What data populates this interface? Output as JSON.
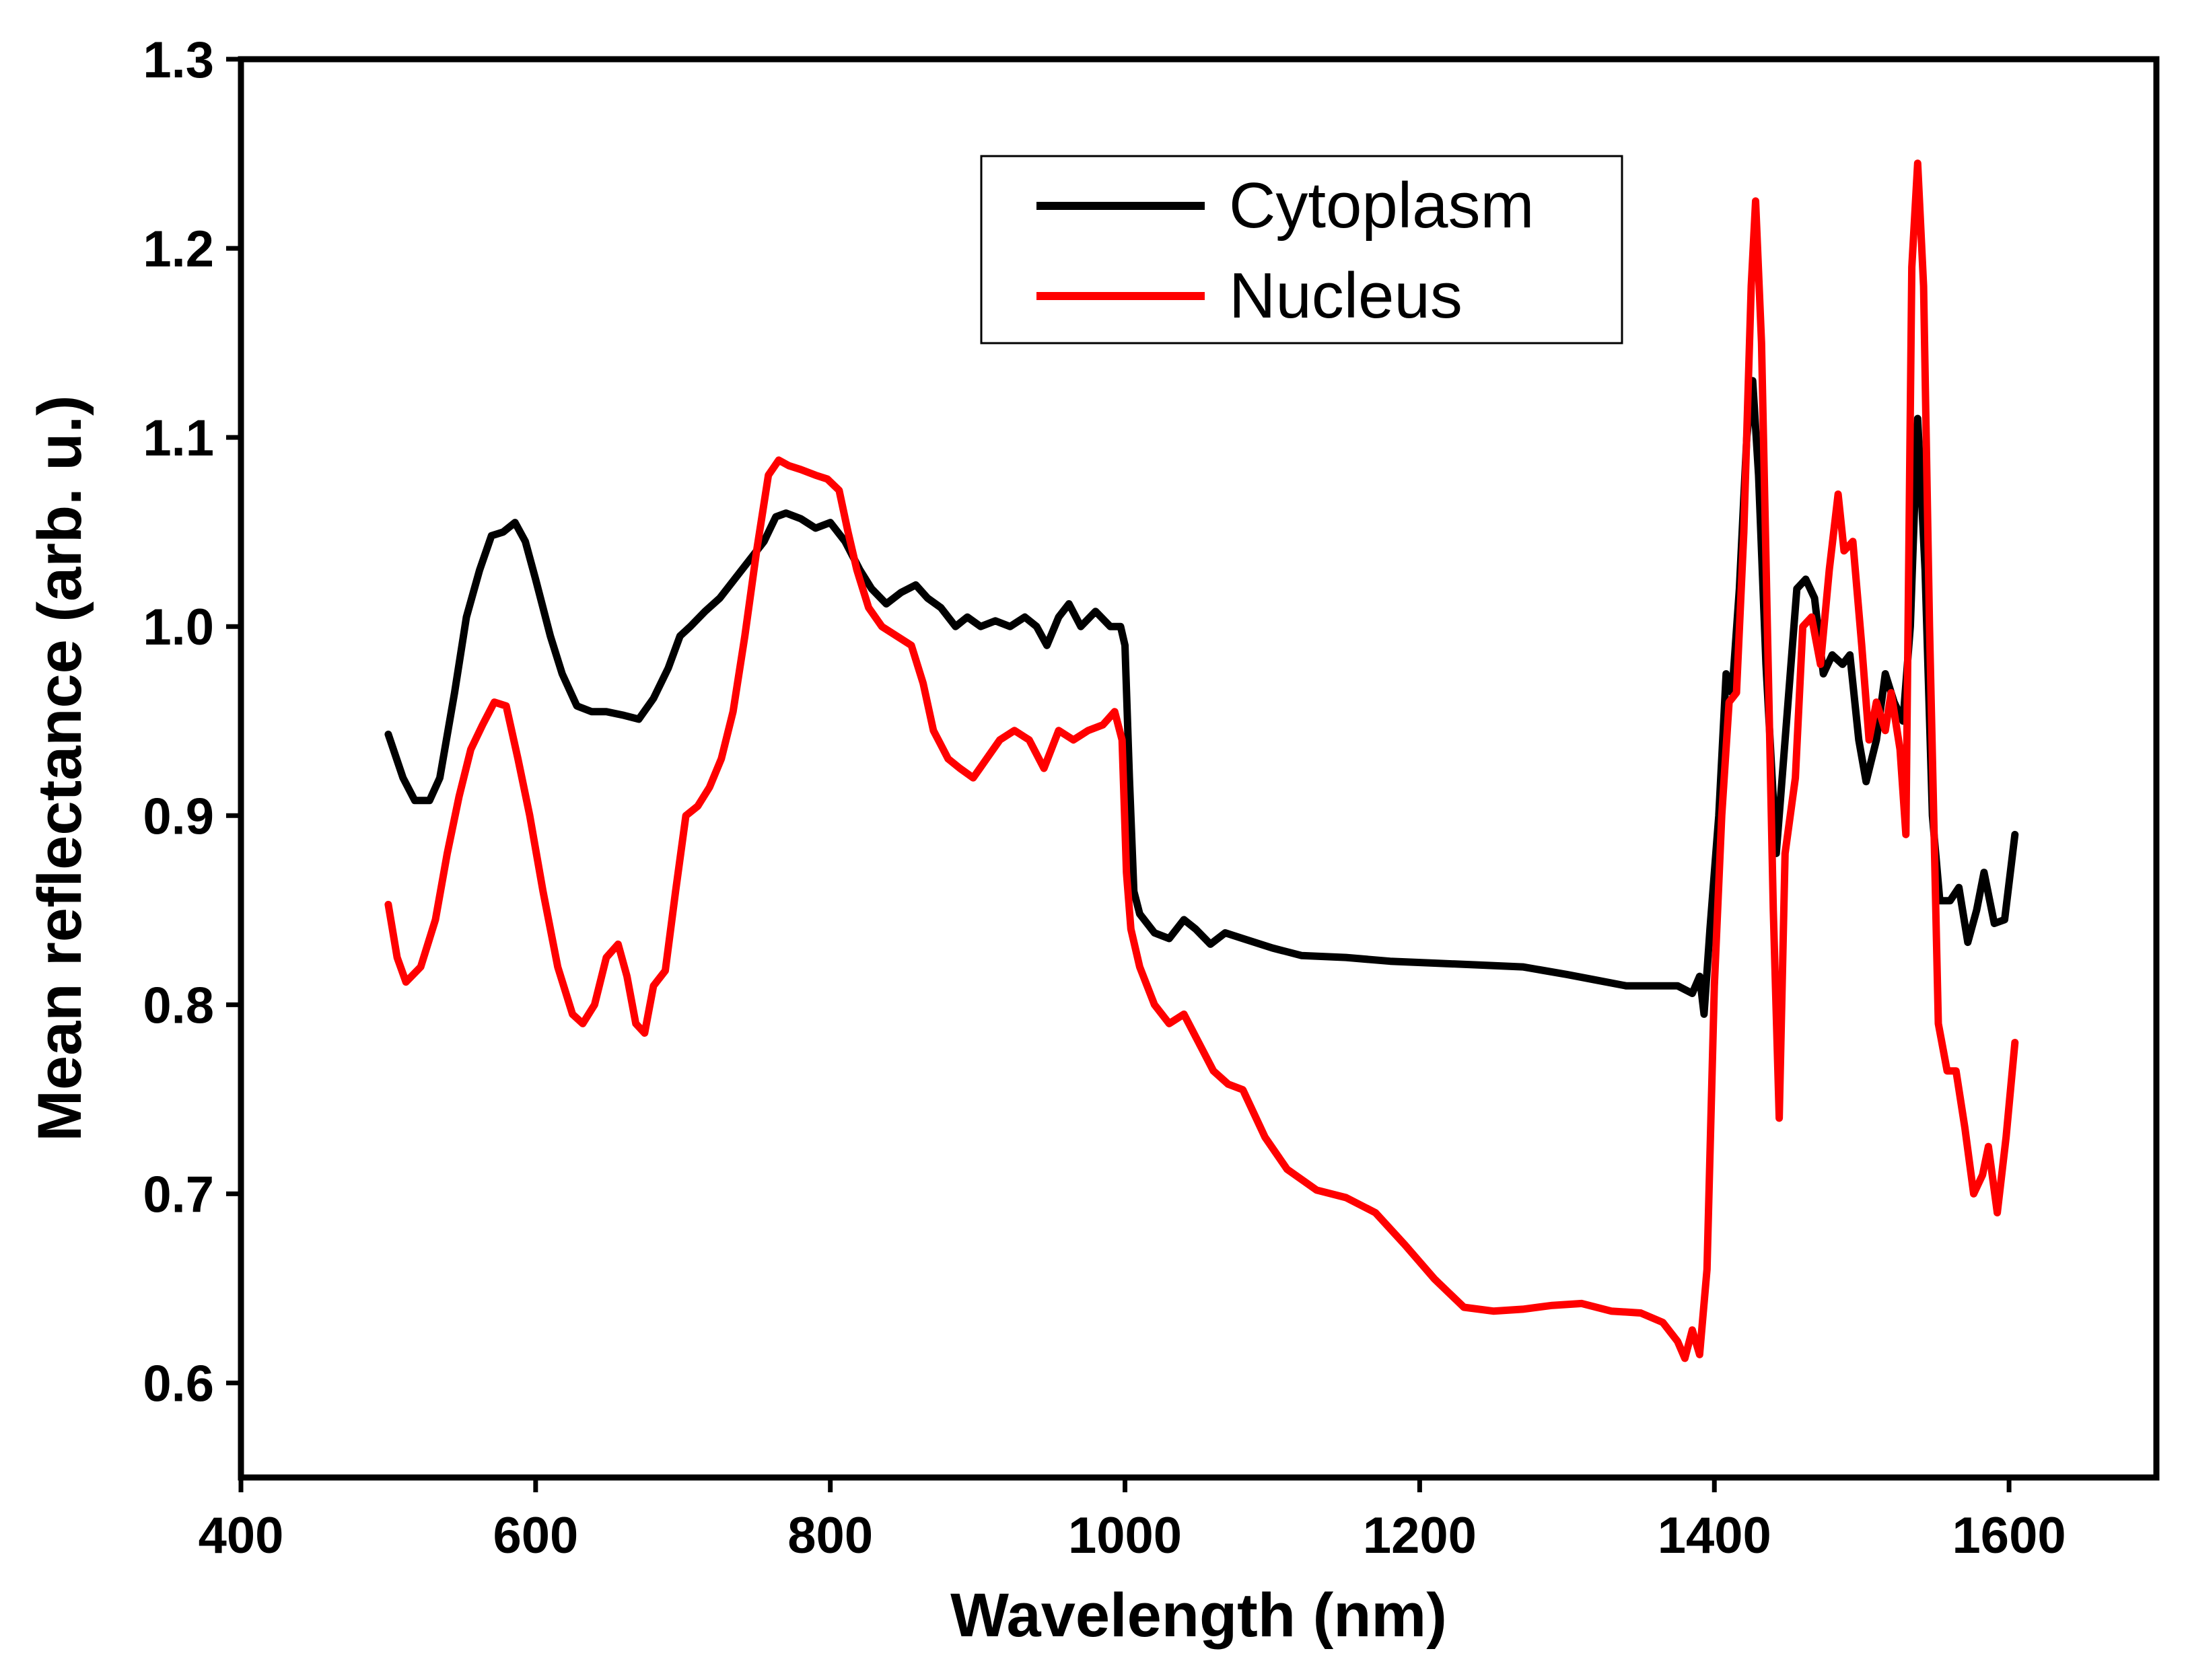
{
  "chart_data": {
    "type": "line",
    "title": "",
    "xlabel": "Wavelength (nm)",
    "ylabel": "Mean reflectance (arb. u.)",
    "xlim": [
      400,
      1700
    ],
    "ylim": [
      0.55,
      1.3
    ],
    "xticks": [
      400,
      600,
      800,
      1000,
      1200,
      1400,
      1600
    ],
    "xtick_labels": [
      "400",
      "600",
      "800",
      "1000",
      "1200",
      "1400",
      "1600"
    ],
    "yticks": [
      0.6,
      0.7,
      0.8,
      0.9,
      1.0,
      1.1,
      1.2,
      1.3
    ],
    "ytick_labels": [
      "0.6",
      "0.7",
      "0.8",
      "0.9",
      "1.0",
      "1.1",
      "1.2",
      "1.3"
    ],
    "grid": false,
    "legend": "top-center",
    "series": [
      {
        "name": "Cytoplasm",
        "color": "#000000",
        "points": [
          [
            500,
            0.943
          ],
          [
            510,
            0.92
          ],
          [
            518,
            0.908
          ],
          [
            528,
            0.908
          ],
          [
            535,
            0.92
          ],
          [
            545,
            0.965
          ],
          [
            553,
            1.005
          ],
          [
            562,
            1.03
          ],
          [
            570,
            1.048
          ],
          [
            578,
            1.05
          ],
          [
            586,
            1.055
          ],
          [
            593,
            1.045
          ],
          [
            600,
            1.025
          ],
          [
            610,
            0.995
          ],
          [
            618,
            0.975
          ],
          [
            628,
            0.958
          ],
          [
            638,
            0.955
          ],
          [
            648,
            0.955
          ],
          [
            660,
            0.953
          ],
          [
            670,
            0.951
          ],
          [
            680,
            0.962
          ],
          [
            690,
            0.978
          ],
          [
            698,
            0.995
          ],
          [
            705,
            1.0
          ],
          [
            715,
            1.008
          ],
          [
            725,
            1.015
          ],
          [
            735,
            1.025
          ],
          [
            745,
            1.035
          ],
          [
            755,
            1.045
          ],
          [
            763,
            1.058
          ],
          [
            770,
            1.06
          ],
          [
            780,
            1.057
          ],
          [
            790,
            1.052
          ],
          [
            800,
            1.055
          ],
          [
            810,
            1.045
          ],
          [
            820,
            1.03
          ],
          [
            828,
            1.02
          ],
          [
            838,
            1.012
          ],
          [
            848,
            1.018
          ],
          [
            858,
            1.022
          ],
          [
            866,
            1.015
          ],
          [
            875,
            1.01
          ],
          [
            885,
            1.0
          ],
          [
            893,
            1.005
          ],
          [
            902,
            1.0
          ],
          [
            912,
            1.003
          ],
          [
            922,
            1.0
          ],
          [
            932,
            1.005
          ],
          [
            940,
            1.0
          ],
          [
            947,
            0.99
          ],
          [
            955,
            1.005
          ],
          [
            962,
            1.012
          ],
          [
            970,
            1.0
          ],
          [
            980,
            1.008
          ],
          [
            990,
            1.0
          ],
          [
            997,
            1.0
          ],
          [
            1000,
            0.99
          ],
          [
            1003,
            0.92
          ],
          [
            1006,
            0.86
          ],
          [
            1010,
            0.848
          ],
          [
            1020,
            0.838
          ],
          [
            1030,
            0.835
          ],
          [
            1040,
            0.845
          ],
          [
            1048,
            0.84
          ],
          [
            1058,
            0.832
          ],
          [
            1068,
            0.838
          ],
          [
            1080,
            0.835
          ],
          [
            1100,
            0.83
          ],
          [
            1120,
            0.826
          ],
          [
            1150,
            0.825
          ],
          [
            1180,
            0.823
          ],
          [
            1210,
            0.822
          ],
          [
            1240,
            0.821
          ],
          [
            1270,
            0.82
          ],
          [
            1300,
            0.816
          ],
          [
            1320,
            0.813
          ],
          [
            1340,
            0.81
          ],
          [
            1360,
            0.81
          ],
          [
            1375,
            0.81
          ],
          [
            1385,
            0.806
          ],
          [
            1390,
            0.815
          ],
          [
            1393,
            0.795
          ],
          [
            1397,
            0.84
          ],
          [
            1403,
            0.9
          ],
          [
            1408,
            0.975
          ],
          [
            1412,
            0.965
          ],
          [
            1417,
            1.02
          ],
          [
            1422,
            1.1
          ],
          [
            1426,
            1.13
          ],
          [
            1430,
            1.08
          ],
          [
            1435,
            0.98
          ],
          [
            1442,
            0.88
          ],
          [
            1450,
            0.96
          ],
          [
            1456,
            1.02
          ],
          [
            1462,
            1.025
          ],
          [
            1468,
            1.015
          ],
          [
            1474,
            0.975
          ],
          [
            1480,
            0.985
          ],
          [
            1487,
            0.98
          ],
          [
            1492,
            0.985
          ],
          [
            1498,
            0.94
          ],
          [
            1503,
            0.918
          ],
          [
            1510,
            0.94
          ],
          [
            1516,
            0.975
          ],
          [
            1522,
            0.96
          ],
          [
            1528,
            0.95
          ],
          [
            1533,
            1.0
          ],
          [
            1538,
            1.11
          ],
          [
            1543,
            1.03
          ],
          [
            1548,
            0.9
          ],
          [
            1553,
            0.855
          ],
          [
            1560,
            0.855
          ],
          [
            1566,
            0.862
          ],
          [
            1572,
            0.833
          ],
          [
            1578,
            0.85
          ],
          [
            1583,
            0.87
          ],
          [
            1590,
            0.843
          ],
          [
            1597,
            0.845
          ],
          [
            1604,
            0.89
          ]
        ]
      },
      {
        "name": "Nucleus",
        "color": "#ff0000",
        "points": [
          [
            500,
            0.853
          ],
          [
            506,
            0.825
          ],
          [
            512,
            0.812
          ],
          [
            522,
            0.82
          ],
          [
            532,
            0.845
          ],
          [
            540,
            0.88
          ],
          [
            548,
            0.91
          ],
          [
            556,
            0.935
          ],
          [
            564,
            0.948
          ],
          [
            572,
            0.96
          ],
          [
            580,
            0.958
          ],
          [
            588,
            0.93
          ],
          [
            596,
            0.9
          ],
          [
            605,
            0.86
          ],
          [
            615,
            0.82
          ],
          [
            625,
            0.795
          ],
          [
            632,
            0.79
          ],
          [
            640,
            0.8
          ],
          [
            648,
            0.825
          ],
          [
            656,
            0.832
          ],
          [
            662,
            0.815
          ],
          [
            668,
            0.79
          ],
          [
            674,
            0.785
          ],
          [
            680,
            0.81
          ],
          [
            688,
            0.818
          ],
          [
            695,
            0.86
          ],
          [
            702,
            0.9
          ],
          [
            710,
            0.905
          ],
          [
            718,
            0.915
          ],
          [
            726,
            0.93
          ],
          [
            734,
            0.955
          ],
          [
            742,
            0.995
          ],
          [
            750,
            1.04
          ],
          [
            758,
            1.08
          ],
          [
            765,
            1.088
          ],
          [
            772,
            1.085
          ],
          [
            780,
            1.083
          ],
          [
            790,
            1.08
          ],
          [
            798,
            1.078
          ],
          [
            806,
            1.072
          ],
          [
            812,
            1.05
          ],
          [
            818,
            1.03
          ],
          [
            826,
            1.01
          ],
          [
            835,
            1.0
          ],
          [
            845,
            0.995
          ],
          [
            855,
            0.99
          ],
          [
            863,
            0.97
          ],
          [
            870,
            0.945
          ],
          [
            880,
            0.93
          ],
          [
            888,
            0.925
          ],
          [
            897,
            0.92
          ],
          [
            906,
            0.93
          ],
          [
            915,
            0.94
          ],
          [
            925,
            0.945
          ],
          [
            935,
            0.94
          ],
          [
            945,
            0.925
          ],
          [
            955,
            0.945
          ],
          [
            965,
            0.94
          ],
          [
            975,
            0.945
          ],
          [
            985,
            0.948
          ],
          [
            993,
            0.955
          ],
          [
            998,
            0.94
          ],
          [
            1001,
            0.87
          ],
          [
            1004,
            0.84
          ],
          [
            1010,
            0.82
          ],
          [
            1020,
            0.8
          ],
          [
            1030,
            0.79
          ],
          [
            1040,
            0.795
          ],
          [
            1050,
            0.78
          ],
          [
            1060,
            0.765
          ],
          [
            1070,
            0.758
          ],
          [
            1080,
            0.755
          ],
          [
            1095,
            0.73
          ],
          [
            1110,
            0.713
          ],
          [
            1130,
            0.702
          ],
          [
            1150,
            0.698
          ],
          [
            1170,
            0.69
          ],
          [
            1190,
            0.673
          ],
          [
            1210,
            0.655
          ],
          [
            1230,
            0.64
          ],
          [
            1250,
            0.638
          ],
          [
            1270,
            0.639
          ],
          [
            1290,
            0.641
          ],
          [
            1310,
            0.642
          ],
          [
            1330,
            0.638
          ],
          [
            1350,
            0.637
          ],
          [
            1365,
            0.632
          ],
          [
            1375,
            0.622
          ],
          [
            1380,
            0.613
          ],
          [
            1385,
            0.628
          ],
          [
            1390,
            0.615
          ],
          [
            1395,
            0.66
          ],
          [
            1400,
            0.81
          ],
          [
            1405,
            0.9
          ],
          [
            1410,
            0.96
          ],
          [
            1415,
            0.965
          ],
          [
            1420,
            1.05
          ],
          [
            1425,
            1.18
          ],
          [
            1428,
            1.225
          ],
          [
            1432,
            1.15
          ],
          [
            1436,
            1.0
          ],
          [
            1440,
            0.85
          ],
          [
            1444,
            0.74
          ],
          [
            1448,
            0.88
          ],
          [
            1455,
            0.92
          ],
          [
            1460,
            1.0
          ],
          [
            1466,
            1.005
          ],
          [
            1472,
            0.98
          ],
          [
            1478,
            1.03
          ],
          [
            1484,
            1.07
          ],
          [
            1488,
            1.04
          ],
          [
            1494,
            1.045
          ],
          [
            1500,
            0.99
          ],
          [
            1505,
            0.94
          ],
          [
            1510,
            0.96
          ],
          [
            1516,
            0.945
          ],
          [
            1520,
            0.965
          ],
          [
            1526,
            0.935
          ],
          [
            1530,
            0.89
          ],
          [
            1534,
            1.19
          ],
          [
            1538,
            1.245
          ],
          [
            1542,
            1.18
          ],
          [
            1546,
            1.0
          ],
          [
            1552,
            0.79
          ],
          [
            1558,
            0.765
          ],
          [
            1564,
            0.765
          ],
          [
            1570,
            0.735
          ],
          [
            1576,
            0.7
          ],
          [
            1582,
            0.71
          ],
          [
            1586,
            0.725
          ],
          [
            1592,
            0.69
          ],
          [
            1598,
            0.73
          ],
          [
            1604,
            0.78
          ]
        ]
      }
    ]
  }
}
